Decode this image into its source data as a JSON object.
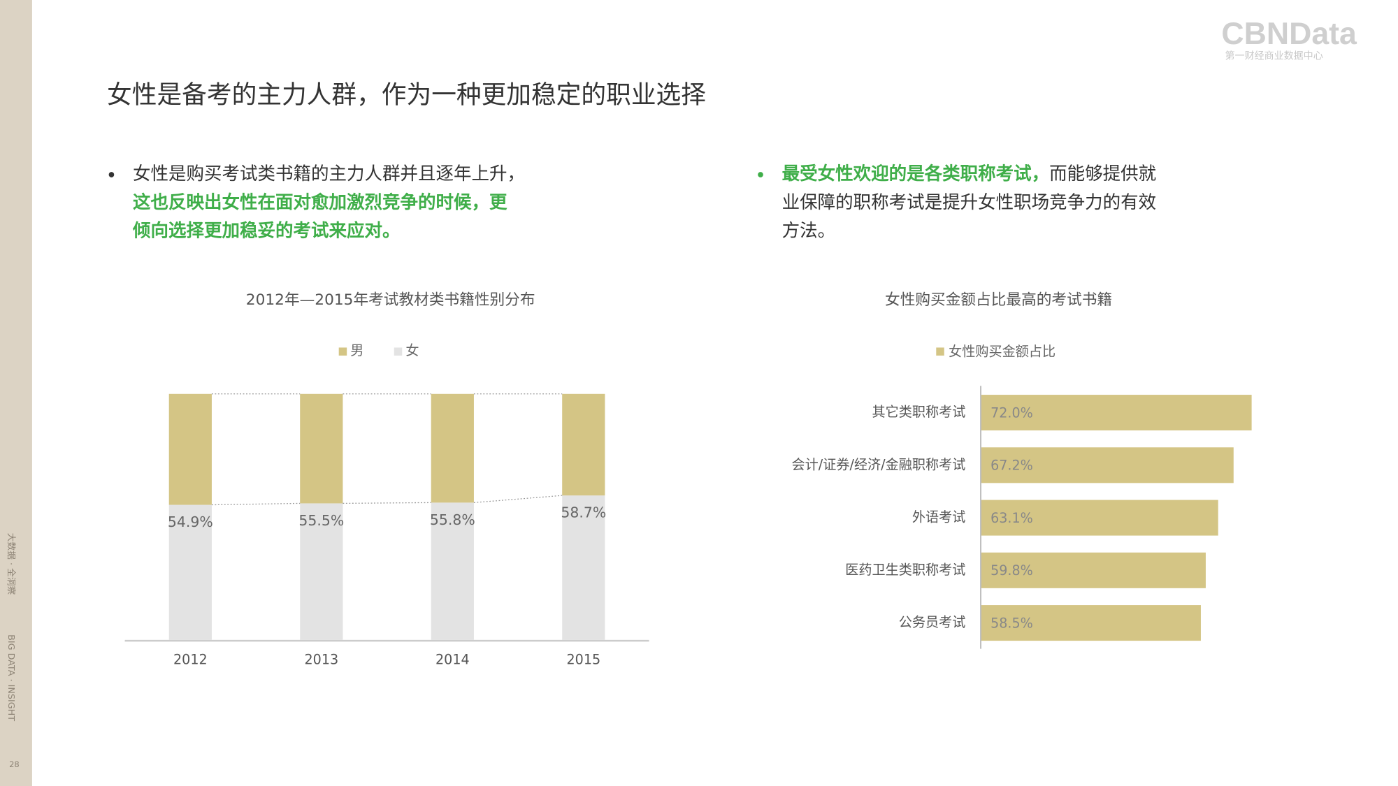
{
  "logo": {
    "name": "CBNData",
    "tagline": "第一财经商业数据中心"
  },
  "sidebar": {
    "cn": "大数据 · 全洞察",
    "en": "BIG DATA · INSIGHT",
    "page": "28"
  },
  "title": "女性是备考的主力人群，作为一种更加稳定的职业选择",
  "bullets": [
    {
      "lines": [
        [
          {
            "text": "女性是购买考试类书籍的主力人群并且逐年上升，",
            "emphasis": false
          }
        ],
        [
          {
            "text": "这也反映出女性在面对愈加激烈竞争的时候，更",
            "emphasis": true
          }
        ],
        [
          {
            "text": "倾向选择更加稳妥的考试来应对。",
            "emphasis": true
          }
        ]
      ]
    },
    {
      "lines": [
        [
          {
            "text": "最受女性欢迎的是各类职称考试，",
            "emphasis": true
          },
          {
            "text": "而能够提供就",
            "emphasis": false
          }
        ],
        [
          {
            "text": "业保障的职称考试是提升女性职场竞争力的有效",
            "emphasis": false
          }
        ],
        [
          {
            "text": "方法。",
            "emphasis": false
          }
        ]
      ]
    }
  ],
  "chart_data": [
    {
      "type": "stacked_bar",
      "title": "2012年—2015年考试教材类书籍性别分布",
      "categories": [
        "2012",
        "2013",
        "2014",
        "2015"
      ],
      "series": [
        {
          "name": "男",
          "color": "#d4c585",
          "values": [
            45.1,
            44.5,
            44.2,
            41.3
          ]
        },
        {
          "name": "女",
          "color": "#e3e3e3",
          "values": [
            54.9,
            55.5,
            55.8,
            58.7
          ],
          "value_labels": [
            "54.9%",
            "55.5%",
            "55.8%",
            "58.7%"
          ]
        }
      ],
      "ylim": [
        0,
        100
      ]
    },
    {
      "type": "hbar",
      "title": "女性购买金额占比最高的考试书籍",
      "categories": [
        "其它类职称考试",
        "会计/证券/经济/金融职称考试",
        "外语考试",
        "医药卫生类职称考试",
        "公务员考试"
      ],
      "series": [
        {
          "name": "女性购买金额占比",
          "color": "#d4c585",
          "values": [
            72.0,
            67.2,
            63.1,
            59.8,
            58.5
          ],
          "value_labels": [
            "72.0%",
            "67.2%",
            "63.1%",
            "59.8%",
            "58.5%"
          ]
        }
      ],
      "xlim": [
        0,
        100
      ]
    }
  ]
}
